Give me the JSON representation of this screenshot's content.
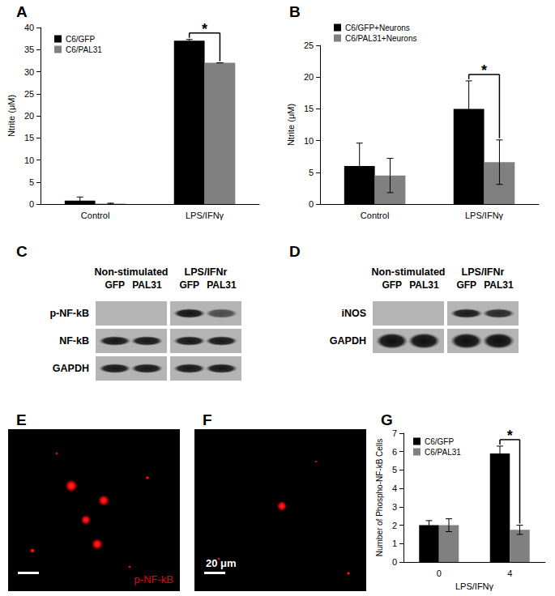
{
  "chart_data": [
    {
      "type": "bar",
      "panel_label": "A",
      "categories": [
        "Control",
        "LPS/IFNγ"
      ],
      "y_label": "Ntrite (μM)",
      "ylim": [
        0,
        40
      ],
      "yticks": [
        0,
        5,
        10,
        15,
        20,
        25,
        30,
        35,
        40
      ],
      "grid": false,
      "legend": "top-left",
      "series": [
        {
          "name": "C6/GFP",
          "color": "#000000",
          "values": [
            0.8,
            37
          ],
          "errors": [
            0.8,
            0.3
          ]
        },
        {
          "name": "C6/PAL31",
          "color": "#808080",
          "values": [
            0.1,
            32
          ],
          "errors": [
            0.1,
            0
          ]
        }
      ],
      "annotations": [
        {
          "text": "*",
          "category": "LPS/IFNγ"
        }
      ]
    },
    {
      "type": "bar",
      "panel_label": "B",
      "categories": [
        "Control",
        "LPS/IFNγ"
      ],
      "y_label": "Ntrite (μM)",
      "ylim": [
        0,
        25
      ],
      "yticks": [
        0,
        5,
        10,
        15,
        20,
        25
      ],
      "grid": false,
      "legend": "top-left",
      "series": [
        {
          "name": "C6/GFP+Neurons",
          "color": "#000000",
          "values": [
            6,
            15
          ],
          "errors": [
            3.6,
            4.4
          ]
        },
        {
          "name": "C6/PAL31+Neurons",
          "color": "#808080",
          "values": [
            4.5,
            6.6
          ],
          "errors": [
            2.7,
            3.5
          ]
        }
      ],
      "annotations": [
        {
          "text": "*",
          "category": "LPS/IFNγ"
        }
      ]
    },
    {
      "type": "bar",
      "panel_label": "G",
      "categories": [
        "0",
        "4"
      ],
      "x_label": "LPS/IFNγ",
      "y_label": "Number of Phospho-NF-kB Cells",
      "ylim": [
        0,
        7
      ],
      "yticks": [
        0,
        1,
        2,
        3,
        4,
        5,
        6,
        7
      ],
      "grid": false,
      "legend": "top-left",
      "series": [
        {
          "name": "C6/GFP",
          "color": "#000000",
          "values": [
            2,
            5.9
          ],
          "errors": [
            0.25,
            0.4
          ]
        },
        {
          "name": "C6/PAL31",
          "color": "#808080",
          "values": [
            2,
            1.75
          ],
          "errors": [
            0.35,
            0.25
          ]
        }
      ],
      "annotations": [
        {
          "text": "*",
          "category": "4"
        }
      ]
    }
  ],
  "blots": [
    {
      "panel_label": "C",
      "groups": [
        "Non-stimulated",
        "LPS/IFNr"
      ],
      "lanes": [
        "GFP",
        "PAL31",
        "GFP",
        "PAL31"
      ],
      "rows": [
        "p-NF-kB",
        "NF-kB",
        "GAPDH"
      ]
    },
    {
      "panel_label": "D",
      "groups": [
        "Non-stimulated",
        "LPS/IFNr"
      ],
      "lanes": [
        "GFP",
        "PAL31",
        "GFP",
        "PAL31"
      ],
      "rows": [
        "iNOS",
        "GAPDH"
      ]
    }
  ],
  "images": [
    {
      "panel_label": "E",
      "label": "p-NF-kB"
    },
    {
      "panel_label": "F",
      "scale_bar": "20 μm"
    }
  ]
}
